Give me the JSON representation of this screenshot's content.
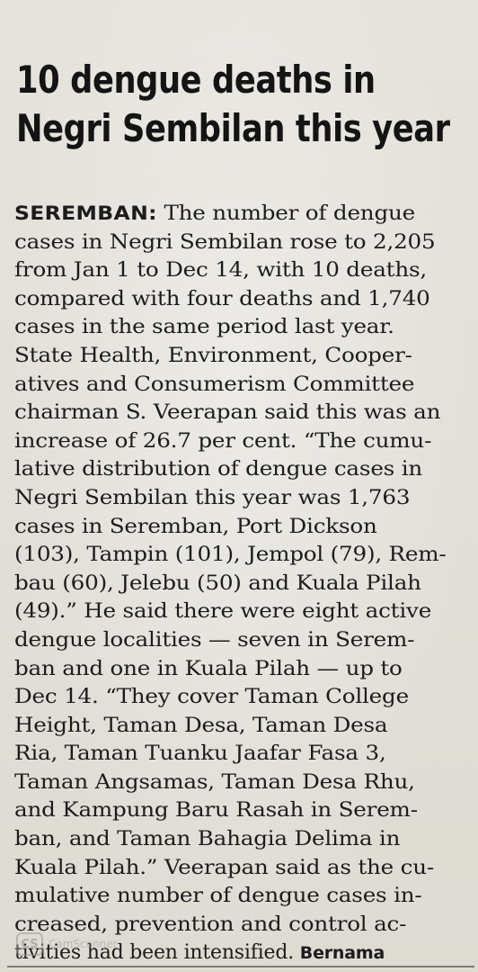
{
  "headline": {
    "line1": "10 dengue deaths in",
    "line2": "Negri Sembilan this year"
  },
  "article": {
    "dateline": "SEREMBAN:",
    "line1_rest": " The number of dengue",
    "lines": [
      "cases in Negri Sembilan rose to 2,205",
      "from Jan 1 to Dec 14, with 10 deaths,",
      "compared with four deaths and 1,740",
      "cases in the same period last year.",
      "State Health, Environment, Cooper-",
      "atives and Consumerism Committee",
      "chairman S. Veerapan said this was an",
      "increase of 26.7 per cent. “The cumu-",
      "lative distribution of dengue cases in",
      "Negri Sembilan this year was 1,763",
      "cases in Seremban, Port Dickson",
      "(103), Tampin (101), Jempol (79), Rem-",
      "bau (60), Jelebu (50) and Kuala Pilah",
      "(49).” He said there were eight active",
      "dengue localities — seven in Serem-",
      "ban and one in Kuala Pilah — up to",
      "Dec 14. “They cover Taman College",
      "Height, Taman Desa, Taman Desa",
      "Ria, Taman Tuanku Jaafar Fasa 3,",
      "Taman Angsamas, Taman Desa Rhu,",
      "and Kampung Baru Rasah in Serem-",
      "ban, and Taman Bahagia Delima in",
      "Kuala Pilah.” Veerapan said as the cu-",
      "mulative number of dengue cases in-",
      "creased, prevention and control ac-"
    ],
    "last_line": "tivities had been intensified. ",
    "byline": "Bernama"
  },
  "watermark": {
    "icon_text": "CS",
    "text": "CamScanner"
  }
}
